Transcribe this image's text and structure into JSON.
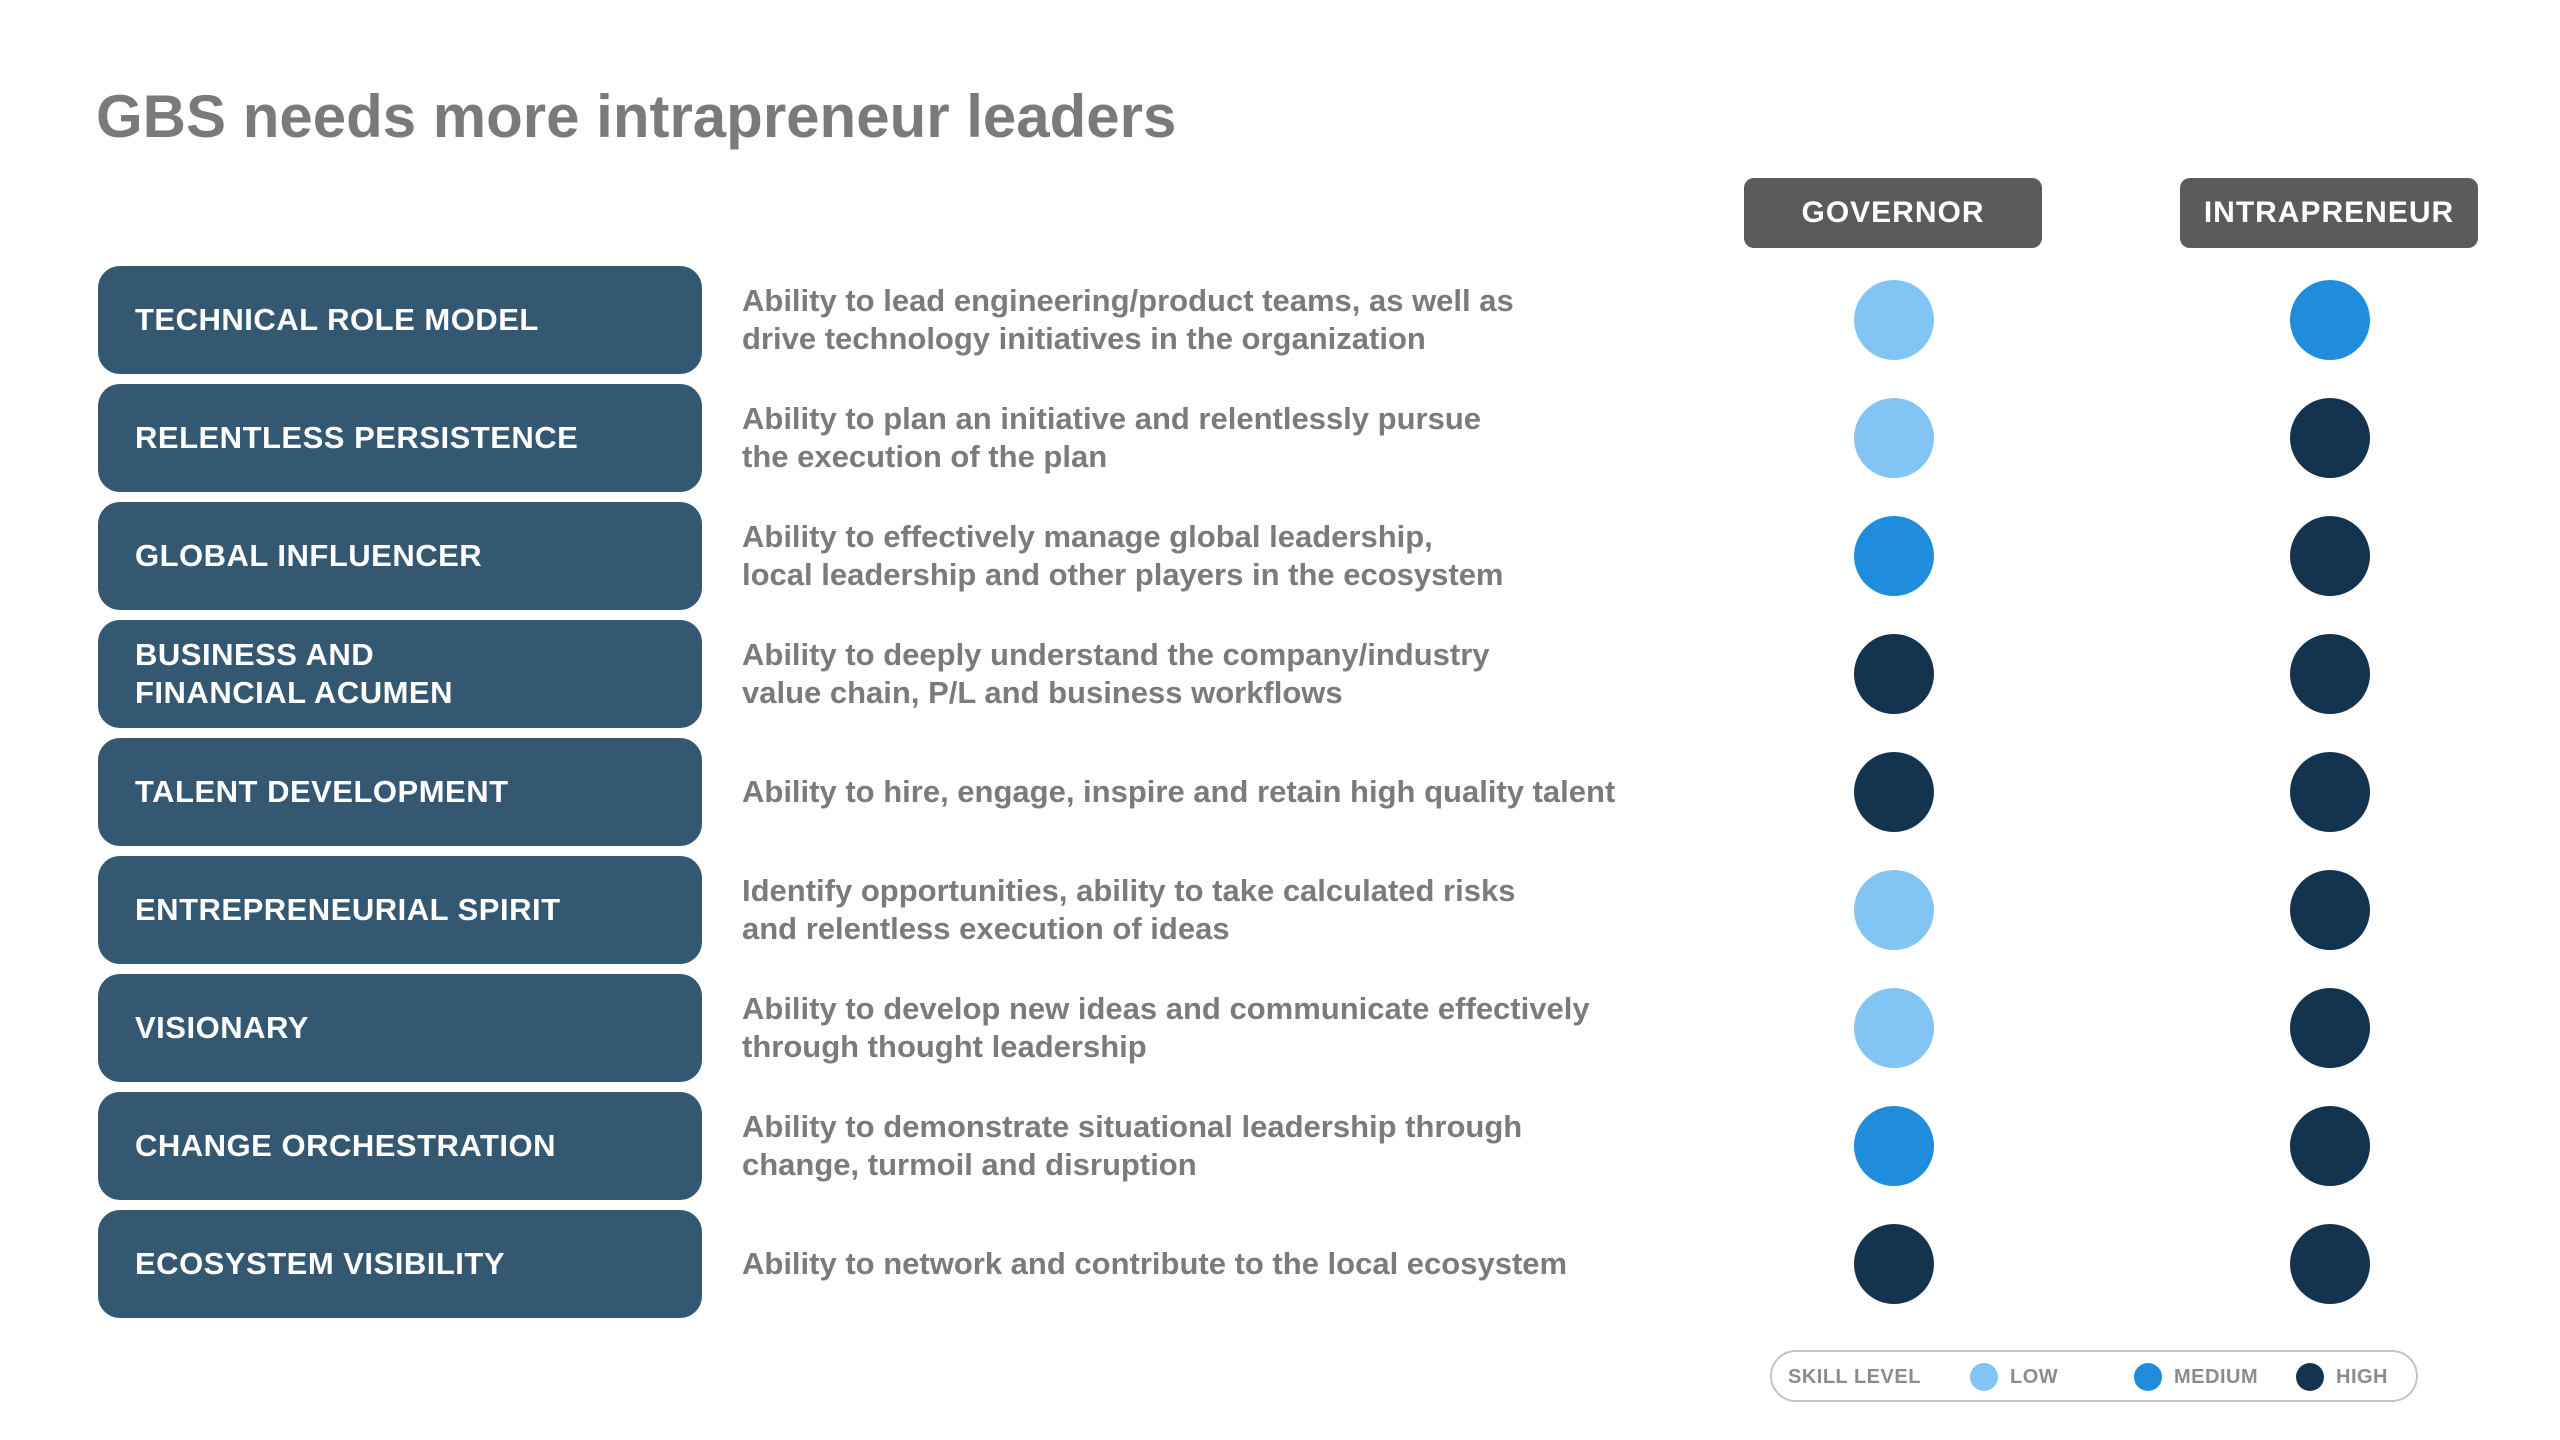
{
  "title": "GBS needs more intrapreneur leaders",
  "columns": {
    "governor": "GOVERNOR",
    "intrapreneur": "INTRAPRENEUR"
  },
  "skill_colors": {
    "low": "#82c5f5",
    "medium": "#1f8cdc",
    "high": "#13334f"
  },
  "skills": [
    {
      "name": "TECHNICAL ROLE MODEL",
      "description": "Ability to lead engineering/product teams, as well as\ndrive technology initiatives in the organization",
      "governor": "low",
      "intrapreneur": "medium"
    },
    {
      "name": "RELENTLESS PERSISTENCE",
      "description": "Ability to plan an initiative and relentlessly pursue\nthe execution of the plan",
      "governor": "low",
      "intrapreneur": "high"
    },
    {
      "name": "GLOBAL INFLUENCER",
      "description": "Ability to effectively manage global leadership,\nlocal leadership and other players in the ecosystem",
      "governor": "medium",
      "intrapreneur": "high"
    },
    {
      "name": "BUSINESS AND\nFINANCIAL ACUMEN",
      "description": "Ability to deeply understand the company/industry\nvalue chain, P/L and business workflows",
      "governor": "high",
      "intrapreneur": "high"
    },
    {
      "name": "TALENT DEVELOPMENT",
      "description": "Ability to hire, engage, inspire and retain high quality talent",
      "governor": "high",
      "intrapreneur": "high"
    },
    {
      "name": "ENTREPRENEURIAL SPIRIT",
      "description": "Identify opportunities, ability to take calculated risks\nand relentless execution of ideas",
      "governor": "low",
      "intrapreneur": "high"
    },
    {
      "name": "VISIONARY",
      "description": "Ability to develop new ideas and communicate effectively\nthrough thought leadership",
      "governor": "low",
      "intrapreneur": "high"
    },
    {
      "name": "CHANGE ORCHESTRATION",
      "description": "Ability to demonstrate situational leadership through\nchange, turmoil and disruption",
      "governor": "medium",
      "intrapreneur": "high"
    },
    {
      "name": "ECOSYSTEM VISIBILITY",
      "description": "Ability to network and contribute to the local ecosystem",
      "governor": "high",
      "intrapreneur": "high"
    }
  ],
  "legend": {
    "title": "SKILL LEVEL",
    "low": "LOW",
    "medium": "MEDIUM",
    "high": "HIGH"
  }
}
